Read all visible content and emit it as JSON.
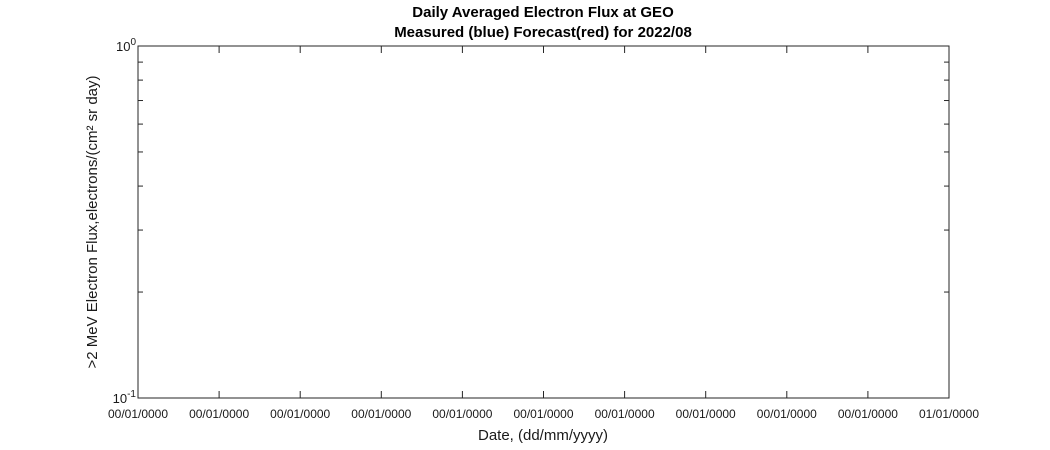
{
  "chart_data": {
    "type": "line",
    "title": "Daily Averaged Electron Flux at GEO",
    "subtitle": "Measured (blue) Forecast(red) for 2022/08",
    "xlabel": "Date, (dd/mm/yyyy)",
    "ylabel": ">2 MeV Electron Flux,electrons/(cm² sr day)",
    "yscale": "log",
    "ylim": [
      0.1,
      1
    ],
    "yticks": [
      {
        "value": 0.1,
        "mantissa": "10",
        "exponent": "-1"
      },
      {
        "value": 1,
        "mantissa": "10",
        "exponent": "0"
      }
    ],
    "xtick_labels": [
      "00/01/0000",
      "00/01/0000",
      "00/01/0000",
      "00/01/0000",
      "00/01/0000",
      "00/01/0000",
      "00/01/0000",
      "00/01/0000",
      "00/01/0000",
      "00/01/0000",
      "01/01/0000"
    ],
    "grid": false,
    "series": []
  }
}
